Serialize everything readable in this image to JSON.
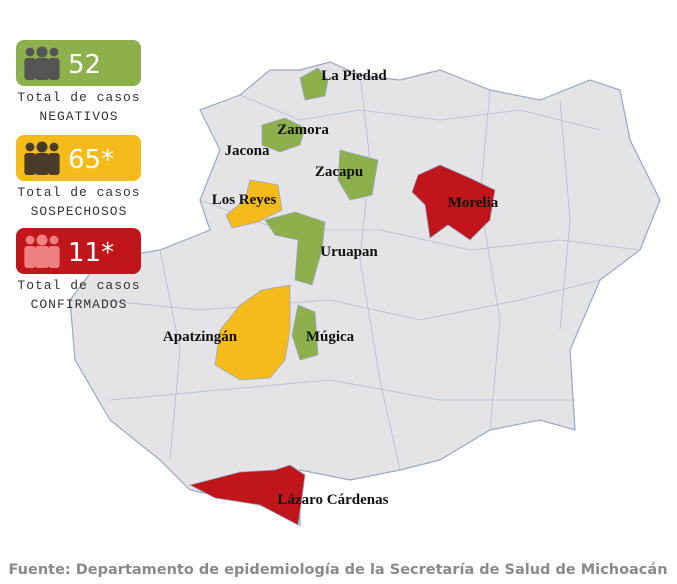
{
  "legend": [
    {
      "count": "52",
      "line1": "Total de casos",
      "line2": "NEGATIVOS"
    },
    {
      "count": "65*",
      "line1": "Total de casos",
      "line2": "SOSPECHOSOS"
    },
    {
      "count": "11*",
      "line1": "Total de casos",
      "line2": "CONFIRMADOS"
    }
  ],
  "places": [
    "La Piedad",
    "Zamora",
    "Jacona",
    "Zacapu",
    "Los Reyes",
    "Morelia",
    "Uruapan",
    "Apatzingán",
    "Múgica",
    "Lázaro Cárdenas"
  ],
  "source": "Fuente: Departamento de epidemiología de la Secretaría de Salud de Michoacán"
}
